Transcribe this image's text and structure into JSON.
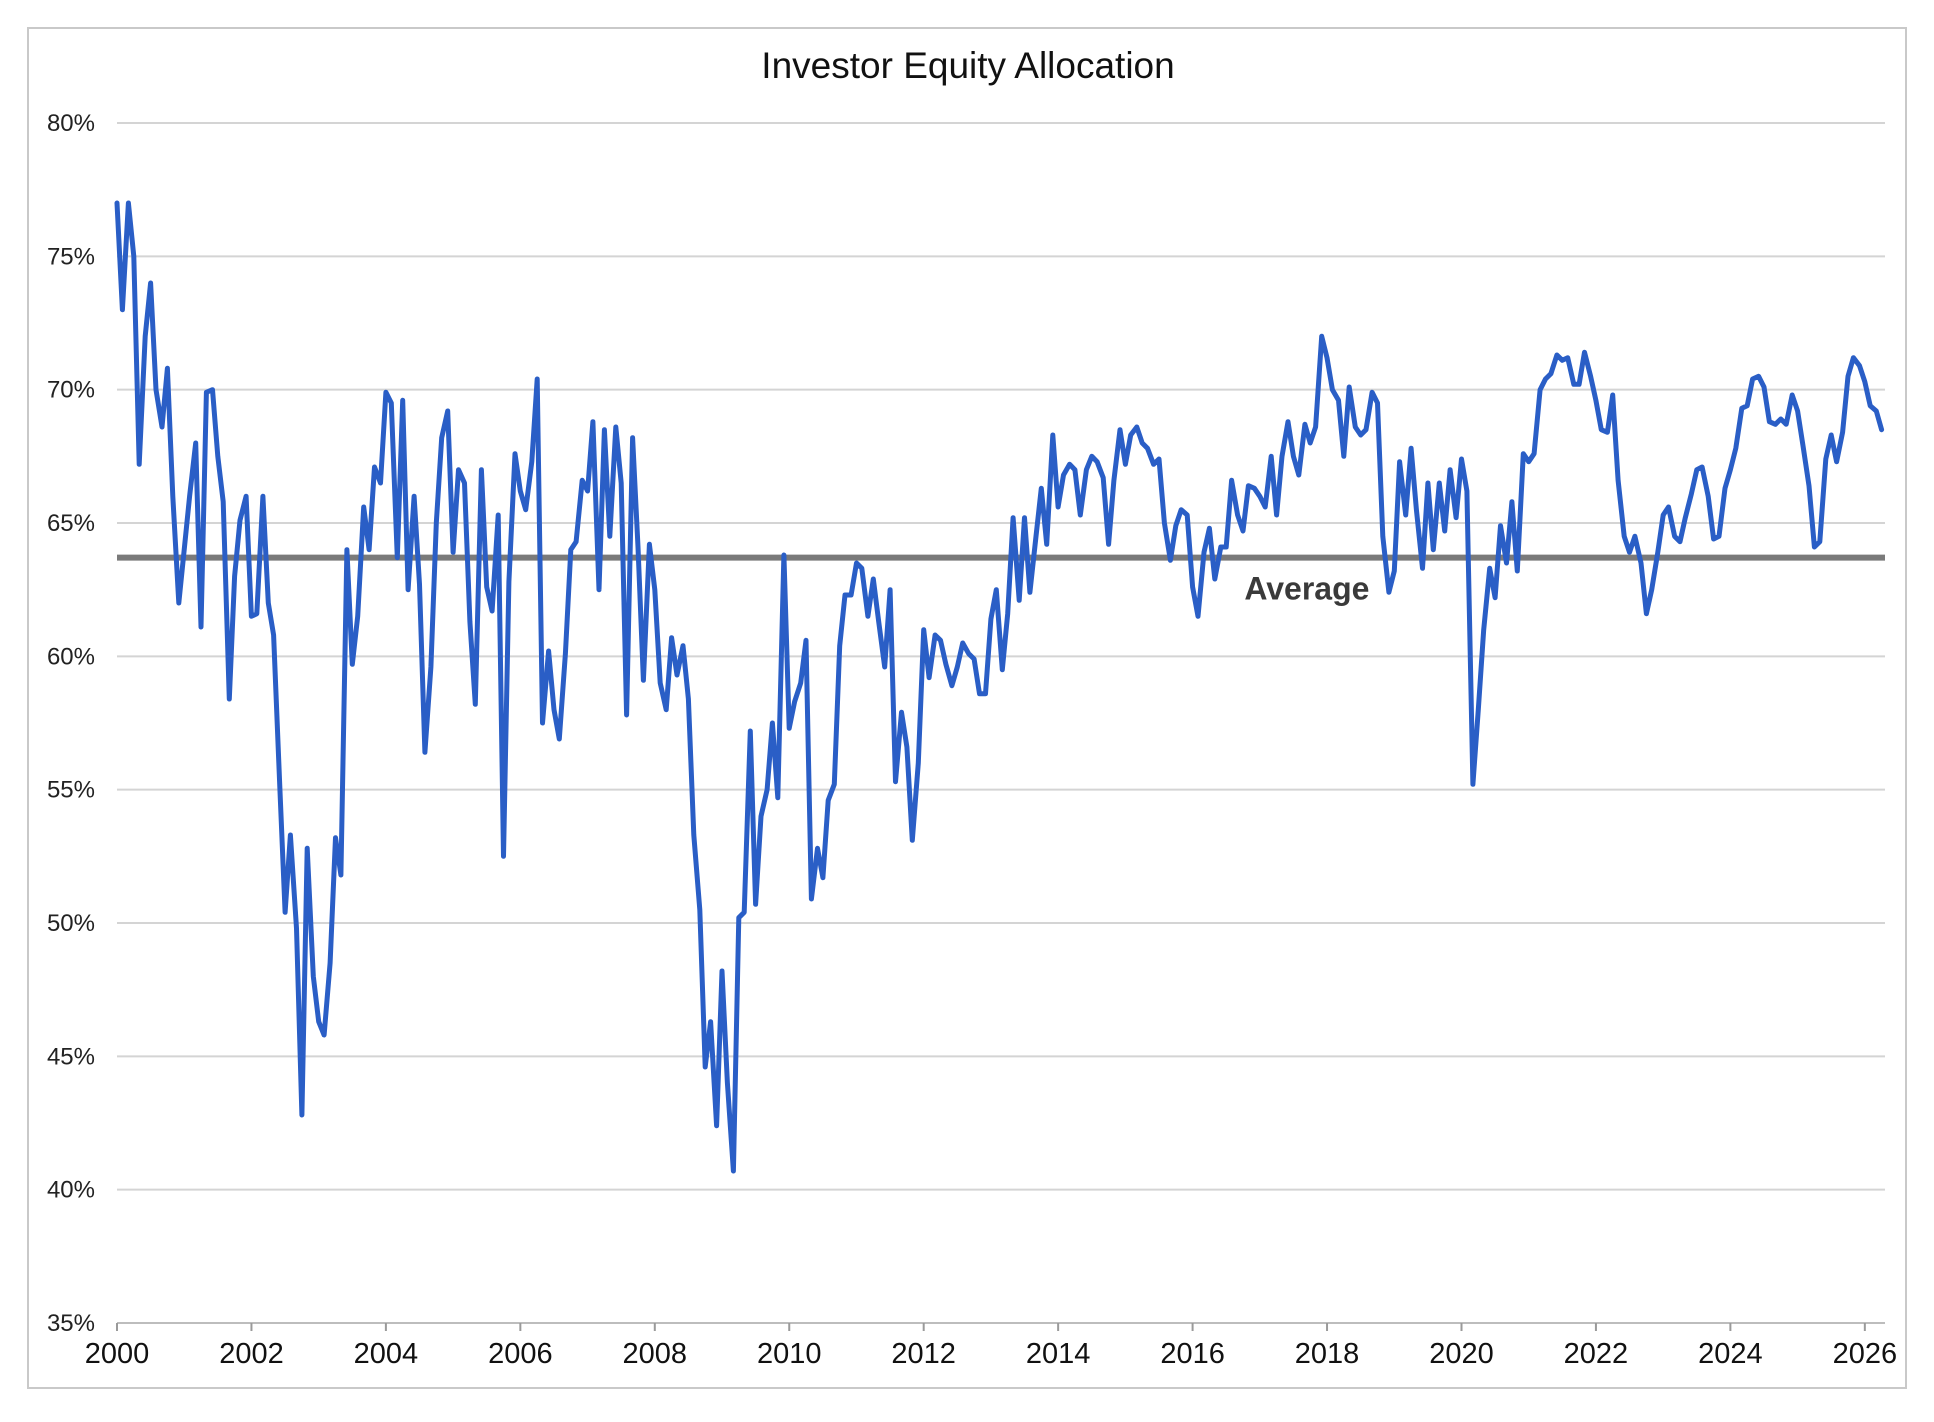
{
  "chart_data": {
    "type": "line",
    "title": "Investor Equity Allocation",
    "xlabel": "",
    "ylabel": "",
    "xlim": [
      2000,
      2026.3
    ],
    "ylim": [
      35,
      80
    ],
    "y_ticks": [
      35,
      40,
      45,
      50,
      55,
      60,
      65,
      70,
      75,
      80
    ],
    "y_tick_labels": [
      "35%",
      "40%",
      "45%",
      "50%",
      "55%",
      "60%",
      "65%",
      "70%",
      "75%",
      "80%"
    ],
    "x_ticks": [
      2000,
      2002,
      2004,
      2006,
      2008,
      2010,
      2012,
      2014,
      2016,
      2018,
      2020,
      2022,
      2024,
      2026
    ],
    "x_tick_labels": [
      "2000",
      "2002",
      "2004",
      "2006",
      "2008",
      "2010",
      "2012",
      "2014",
      "2016",
      "2018",
      "2020",
      "2022",
      "2024",
      "2026"
    ],
    "grid": true,
    "legend": "none",
    "series_color": "#2a5ec6",
    "average_line": {
      "value": 63.7,
      "label": "Average",
      "color": "#7a7a7a"
    },
    "series": [
      {
        "x": [
          2000.0,
          2000.08,
          2000.17,
          2000.25,
          2000.33,
          2000.42,
          2000.5,
          2000.58,
          2000.67,
          2000.75,
          2000.83,
          2000.92,
          2001.0,
          2001.08,
          2001.17,
          2001.25,
          2001.33,
          2001.42,
          2001.5,
          2001.58,
          2001.67,
          2001.75,
          2001.83,
          2001.92,
          2002.0,
          2002.08,
          2002.17,
          2002.25,
          2002.33,
          2002.42,
          2002.5,
          2002.58,
          2002.67,
          2002.75,
          2002.83,
          2002.92,
          2003.0,
          2003.08,
          2003.17,
          2003.25,
          2003.33,
          2003.42,
          2003.5,
          2003.58,
          2003.67,
          2003.75,
          2003.83,
          2003.92,
          2004.0,
          2004.08,
          2004.17,
          2004.25,
          2004.33,
          2004.42,
          2004.5,
          2004.58,
          2004.67,
          2004.75,
          2004.83,
          2004.92,
          2005.0,
          2005.08,
          2005.17,
          2005.25,
          2005.33,
          2005.42,
          2005.5,
          2005.58,
          2005.67,
          2005.75,
          2005.83,
          2005.92,
          2006.0,
          2006.08,
          2006.17,
          2006.25,
          2006.33,
          2006.42,
          2006.5,
          2006.58,
          2006.67,
          2006.75,
          2006.83,
          2006.92,
          2007.0,
          2007.08,
          2007.17,
          2007.25,
          2007.33,
          2007.42,
          2007.5,
          2007.58,
          2007.67,
          2007.75,
          2007.83,
          2007.92,
          2008.0,
          2008.08,
          2008.17,
          2008.25,
          2008.33,
          2008.42,
          2008.5,
          2008.58,
          2008.67,
          2008.75,
          2008.83,
          2008.92,
          2009.0,
          2009.08,
          2009.17,
          2009.25,
          2009.33,
          2009.42,
          2009.5,
          2009.58,
          2009.67,
          2009.75,
          2009.83,
          2009.92,
          2010.0,
          2010.08,
          2010.17,
          2010.25,
          2010.33,
          2010.42,
          2010.5,
          2010.58,
          2010.67,
          2010.75,
          2010.83,
          2010.92,
          2011.0,
          2011.08,
          2011.17,
          2011.25,
          2011.33,
          2011.42,
          2011.5,
          2011.58,
          2011.67,
          2011.75,
          2011.83,
          2011.92,
          2012.0,
          2012.08,
          2012.17,
          2012.25,
          2012.33,
          2012.42,
          2012.5,
          2012.58,
          2012.67,
          2012.75,
          2012.83,
          2012.92,
          2013.0,
          2013.08,
          2013.17,
          2013.25,
          2013.33,
          2013.42,
          2013.5,
          2013.58,
          2013.67,
          2013.75,
          2013.83,
          2013.92,
          2014.0,
          2014.08,
          2014.17,
          2014.25,
          2014.33,
          2014.42,
          2014.5,
          2014.58,
          2014.67,
          2014.75,
          2014.83,
          2014.92,
          2015.0,
          2015.08,
          2015.17,
          2015.25,
          2015.33,
          2015.42,
          2015.5,
          2015.58,
          2015.67,
          2015.75,
          2015.83,
          2015.92,
          2016.0,
          2016.08,
          2016.17,
          2016.25,
          2016.33,
          2016.42,
          2016.5,
          2016.58,
          2016.67,
          2016.75,
          2016.83,
          2016.92,
          2017.0,
          2017.08,
          2017.17,
          2017.25,
          2017.33,
          2017.42,
          2017.5,
          2017.58,
          2017.67,
          2017.75,
          2017.83,
          2017.92,
          2018.0,
          2018.08,
          2018.17,
          2018.25,
          2018.33,
          2018.42,
          2018.5,
          2018.58,
          2018.67,
          2018.75,
          2018.83,
          2018.92,
          2019.0,
          2019.08,
          2019.17,
          2019.25,
          2019.33,
          2019.42,
          2019.5,
          2019.58,
          2019.67,
          2019.75,
          2019.83,
          2019.92,
          2020.0,
          2020.08,
          2020.17,
          2020.25,
          2020.33,
          2020.42,
          2020.5,
          2020.58,
          2020.67,
          2020.75,
          2020.83,
          2020.92,
          2021.0,
          2021.08,
          2021.17,
          2021.25,
          2021.33,
          2021.42,
          2021.5,
          2021.58,
          2021.67,
          2021.75,
          2021.83,
          2021.92,
          2022.0,
          2022.08,
          2022.17,
          2022.25,
          2022.33,
          2022.42,
          2022.5,
          2022.58,
          2022.67,
          2022.75,
          2022.83,
          2022.92,
          2023.0,
          2023.08,
          2023.17,
          2023.25,
          2023.33,
          2023.42,
          2023.5,
          2023.58,
          2023.67,
          2023.75,
          2023.83,
          2023.92,
          2024.0,
          2024.08,
          2024.17,
          2024.25,
          2024.33,
          2024.42,
          2024.5,
          2024.58,
          2024.67,
          2024.75,
          2024.83,
          2024.92,
          2025.0,
          2025.08,
          2025.17,
          2025.25,
          2025.33,
          2025.42,
          2025.5,
          2025.58,
          2025.67,
          2025.75,
          2025.83,
          2025.92,
          2026.0,
          2026.08,
          2026.17,
          2026.25
        ],
        "values": [
          77.0,
          73.0,
          77.0,
          75.0,
          67.2,
          72.0,
          74.0,
          70.0,
          68.6,
          70.8,
          66.0,
          62.0,
          64.0,
          66.0,
          68.0,
          61.1,
          69.9,
          70.0,
          67.5,
          65.8,
          58.4,
          63.0,
          65.1,
          66.0,
          61.5,
          61.6,
          66.0,
          62.0,
          60.8,
          55.2,
          50.4,
          53.3,
          49.8,
          42.8,
          52.8,
          48.0,
          46.3,
          45.8,
          48.5,
          53.2,
          51.8,
          64.0,
          59.7,
          61.5,
          65.6,
          64.0,
          67.1,
          66.5,
          69.9,
          69.5,
          63.7,
          69.6,
          62.5,
          66.0,
          62.7,
          56.4,
          59.6,
          65.0,
          68.2,
          69.2,
          63.9,
          67.0,
          66.5,
          61.3,
          58.2,
          67.0,
          62.6,
          61.7,
          65.3,
          52.5,
          62.8,
          67.6,
          66.2,
          65.5,
          67.3,
          70.4,
          57.5,
          60.2,
          58.0,
          56.9,
          60.1,
          64.0,
          64.3,
          66.6,
          66.2,
          68.8,
          62.5,
          68.5,
          64.5,
          68.6,
          66.5,
          57.8,
          68.2,
          64.1,
          59.1,
          64.2,
          62.5,
          59.0,
          58.0,
          60.7,
          59.3,
          60.4,
          58.4,
          53.3,
          50.5,
          44.6,
          46.3,
          42.4,
          48.2,
          44.0,
          40.7,
          50.2,
          50.4,
          57.2,
          50.7,
          54.0,
          55.0,
          57.5,
          54.7,
          63.8,
          57.3,
          58.3,
          59.0,
          60.6,
          50.9,
          52.8,
          51.7,
          54.6,
          55.2,
          60.4,
          62.3,
          62.3,
          63.5,
          63.3,
          61.5,
          62.9,
          61.3,
          59.6,
          62.5,
          55.3,
          57.9,
          56.6,
          53.1,
          56.0,
          61.0,
          59.2,
          60.8,
          60.6,
          59.7,
          58.9,
          59.6,
          60.5,
          60.1,
          59.9,
          58.6,
          58.6,
          61.4,
          62.5,
          59.5,
          61.6,
          65.2,
          62.1,
          65.2,
          62.4,
          64.5,
          66.3,
          64.2,
          68.3,
          65.6,
          66.8,
          67.2,
          67.0,
          65.3,
          67.0,
          67.5,
          67.3,
          66.7,
          64.2,
          66.6,
          68.5,
          67.2,
          68.3,
          68.6,
          68.0,
          67.8,
          67.2,
          67.4,
          65.0,
          63.6,
          64.9,
          65.5,
          65.3,
          62.6,
          61.5,
          63.9,
          64.8,
          62.9,
          64.1,
          64.1,
          66.6,
          65.3,
          64.7,
          66.4,
          66.3,
          66.0,
          65.6,
          67.5,
          65.3,
          67.5,
          68.8,
          67.5,
          66.8,
          68.7,
          68.0,
          68.6,
          72.0,
          71.2,
          70.0,
          69.6,
          67.5,
          70.1,
          68.6,
          68.3,
          68.5,
          69.9,
          69.5,
          64.5,
          62.4,
          63.2,
          67.3,
          65.3,
          67.8,
          65.5,
          63.3,
          66.5,
          64.0,
          66.5,
          64.7,
          67.0,
          65.2,
          67.4,
          66.2,
          55.2,
          58.0,
          61.0,
          63.3,
          62.2,
          64.9,
          63.5,
          65.8,
          63.2,
          67.6,
          67.3,
          67.6,
          70.0,
          70.4,
          70.6,
          71.3,
          71.1,
          71.2,
          70.2,
          70.2,
          71.4,
          70.5,
          69.6,
          68.5,
          68.4,
          69.8,
          66.6,
          64.5,
          63.9,
          64.5,
          63.5,
          61.6,
          62.5,
          63.9,
          65.3,
          65.6,
          64.5,
          64.3,
          65.2,
          66.1,
          67.0,
          67.1,
          66.0,
          64.4,
          64.5,
          66.3,
          67.0,
          67.8,
          69.3,
          69.4,
          70.4,
          70.5,
          70.1,
          68.8,
          68.7,
          68.9,
          68.7,
          69.8,
          69.2,
          67.9,
          66.4,
          64.1,
          64.3,
          67.4,
          68.3,
          67.3,
          68.4,
          70.5,
          71.2,
          70.9,
          70.3,
          69.4,
          69.2,
          68.5
        ]
      }
    ]
  }
}
